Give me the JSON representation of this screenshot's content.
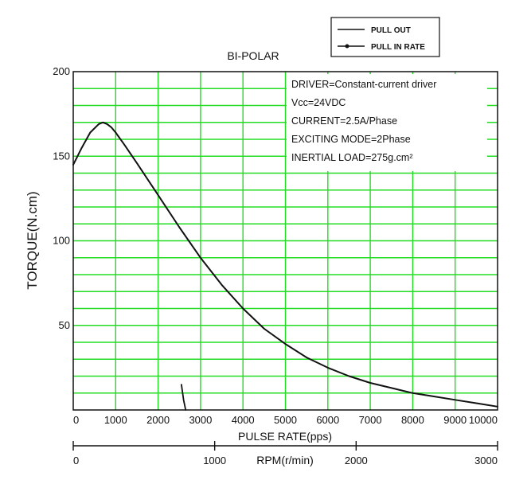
{
  "chart_data": {
    "type": "line",
    "title": "BI-POLAR",
    "xlabel": "PULSE RATE(pps)",
    "ylabel": "TORQUE(N.cm)",
    "secondary_xlabel": "RPM(r/min)",
    "xlim": [
      0,
      10000
    ],
    "ylim": [
      0,
      200
    ],
    "x_ticks": [
      0,
      1000,
      2000,
      3000,
      4000,
      5000,
      6000,
      7000,
      8000,
      9000,
      10000
    ],
    "y_ticks": [
      50,
      100,
      150,
      200
    ],
    "secondary_x_ticks": [
      0,
      1000,
      2000,
      3000
    ],
    "grid": true,
    "grid_color": "#22dd22",
    "legend_position": "top-right",
    "legend": [
      "PULL OUT",
      "PULL IN RATE"
    ],
    "annotations": [
      "DRIVER=Constant-current driver",
      "Vcc=24VDC",
      "CURRENT=2.5A/Phase",
      "EXCITING MODE=2Phase",
      "INERTIAL LOAD=275g.cm²"
    ],
    "series": [
      {
        "name": "PULL OUT",
        "x": [
          0,
          200,
          400,
          600,
          700,
          800,
          900,
          1000,
          1200,
          1500,
          2000,
          2500,
          3000,
          3500,
          4000,
          4500,
          5000,
          5500,
          6000,
          6500,
          7000,
          7500,
          8000,
          8500,
          9000,
          9500,
          10000
        ],
        "y": [
          145,
          155,
          164,
          169,
          170,
          169,
          167,
          164,
          157,
          146,
          127,
          108,
          90,
          74,
          60,
          48,
          39,
          31,
          25,
          20,
          16,
          13,
          10,
          8,
          6,
          4,
          2
        ]
      },
      {
        "name": "PULL IN RATE",
        "x": [
          2550,
          2600,
          2650
        ],
        "y": [
          15,
          6,
          0
        ]
      }
    ]
  }
}
